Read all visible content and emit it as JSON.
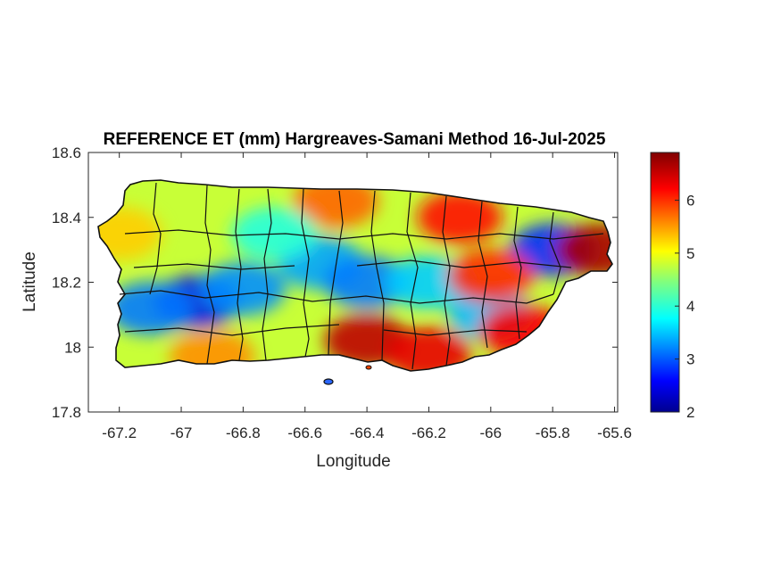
{
  "title": "REFERENCE ET (mm) Hargreaves-Samani Method  16-Jul-2025",
  "xlabel": "Longitude",
  "ylabel": "Latitude",
  "xlim": [
    -67.3,
    -65.59
  ],
  "ylim": [
    17.8,
    18.6
  ],
  "xticks": [
    "-67.2",
    "-67",
    "-66.8",
    "-66.6",
    "-66.4",
    "-66.2",
    "-66",
    "-65.8",
    "-65.6"
  ],
  "yticks": [
    "17.8",
    "18",
    "18.2",
    "18.4",
    "18.6"
  ],
  "colorbar": {
    "min": 2,
    "max": 6.9,
    "colormap": "jet",
    "ticks": [
      "2",
      "3",
      "4",
      "5",
      "6"
    ]
  },
  "chart_data": {
    "type": "heatmap",
    "title": "REFERENCE ET (mm) Hargreaves-Samani Method  16-Jul-2025",
    "xlabel": "Longitude",
    "ylabel": "Latitude",
    "xlim": [
      -67.3,
      -65.59
    ],
    "ylim": [
      17.8,
      18.6
    ],
    "value_range": [
      2,
      6.9
    ],
    "colormap": "jet",
    "hotspots": [
      {
        "lon": -66.95,
        "lat": 18.14,
        "value": 2.5
      },
      {
        "lon": -67.1,
        "lat": 18.12,
        "value": 3.2
      },
      {
        "lon": -66.8,
        "lat": 18.18,
        "value": 3.3
      },
      {
        "lon": -66.55,
        "lat": 18.26,
        "value": 3.4
      },
      {
        "lon": -66.4,
        "lat": 18.2,
        "value": 3.2
      },
      {
        "lon": -66.2,
        "lat": 18.2,
        "value": 3.6
      },
      {
        "lon": -66.0,
        "lat": 18.1,
        "value": 3.5
      },
      {
        "lon": -65.8,
        "lat": 18.3,
        "value": 2.8
      },
      {
        "lon": -66.4,
        "lat": 18.02,
        "value": 6.6
      },
      {
        "lon": -66.2,
        "lat": 17.98,
        "value": 6.4
      },
      {
        "lon": -65.65,
        "lat": 18.3,
        "value": 6.7
      },
      {
        "lon": -65.9,
        "lat": 18.05,
        "value": 6.3
      },
      {
        "lon": -66.1,
        "lat": 18.4,
        "value": 6.2
      },
      {
        "lon": -66.5,
        "lat": 18.45,
        "value": 5.8
      },
      {
        "lon": -67.2,
        "lat": 18.35,
        "value": 5.3
      },
      {
        "lon": -66.9,
        "lat": 17.97,
        "value": 5.6
      },
      {
        "lon": -66.0,
        "lat": 18.22,
        "value": 6.1
      },
      {
        "lon": -66.7,
        "lat": 18.35,
        "value": 4.0
      }
    ]
  }
}
